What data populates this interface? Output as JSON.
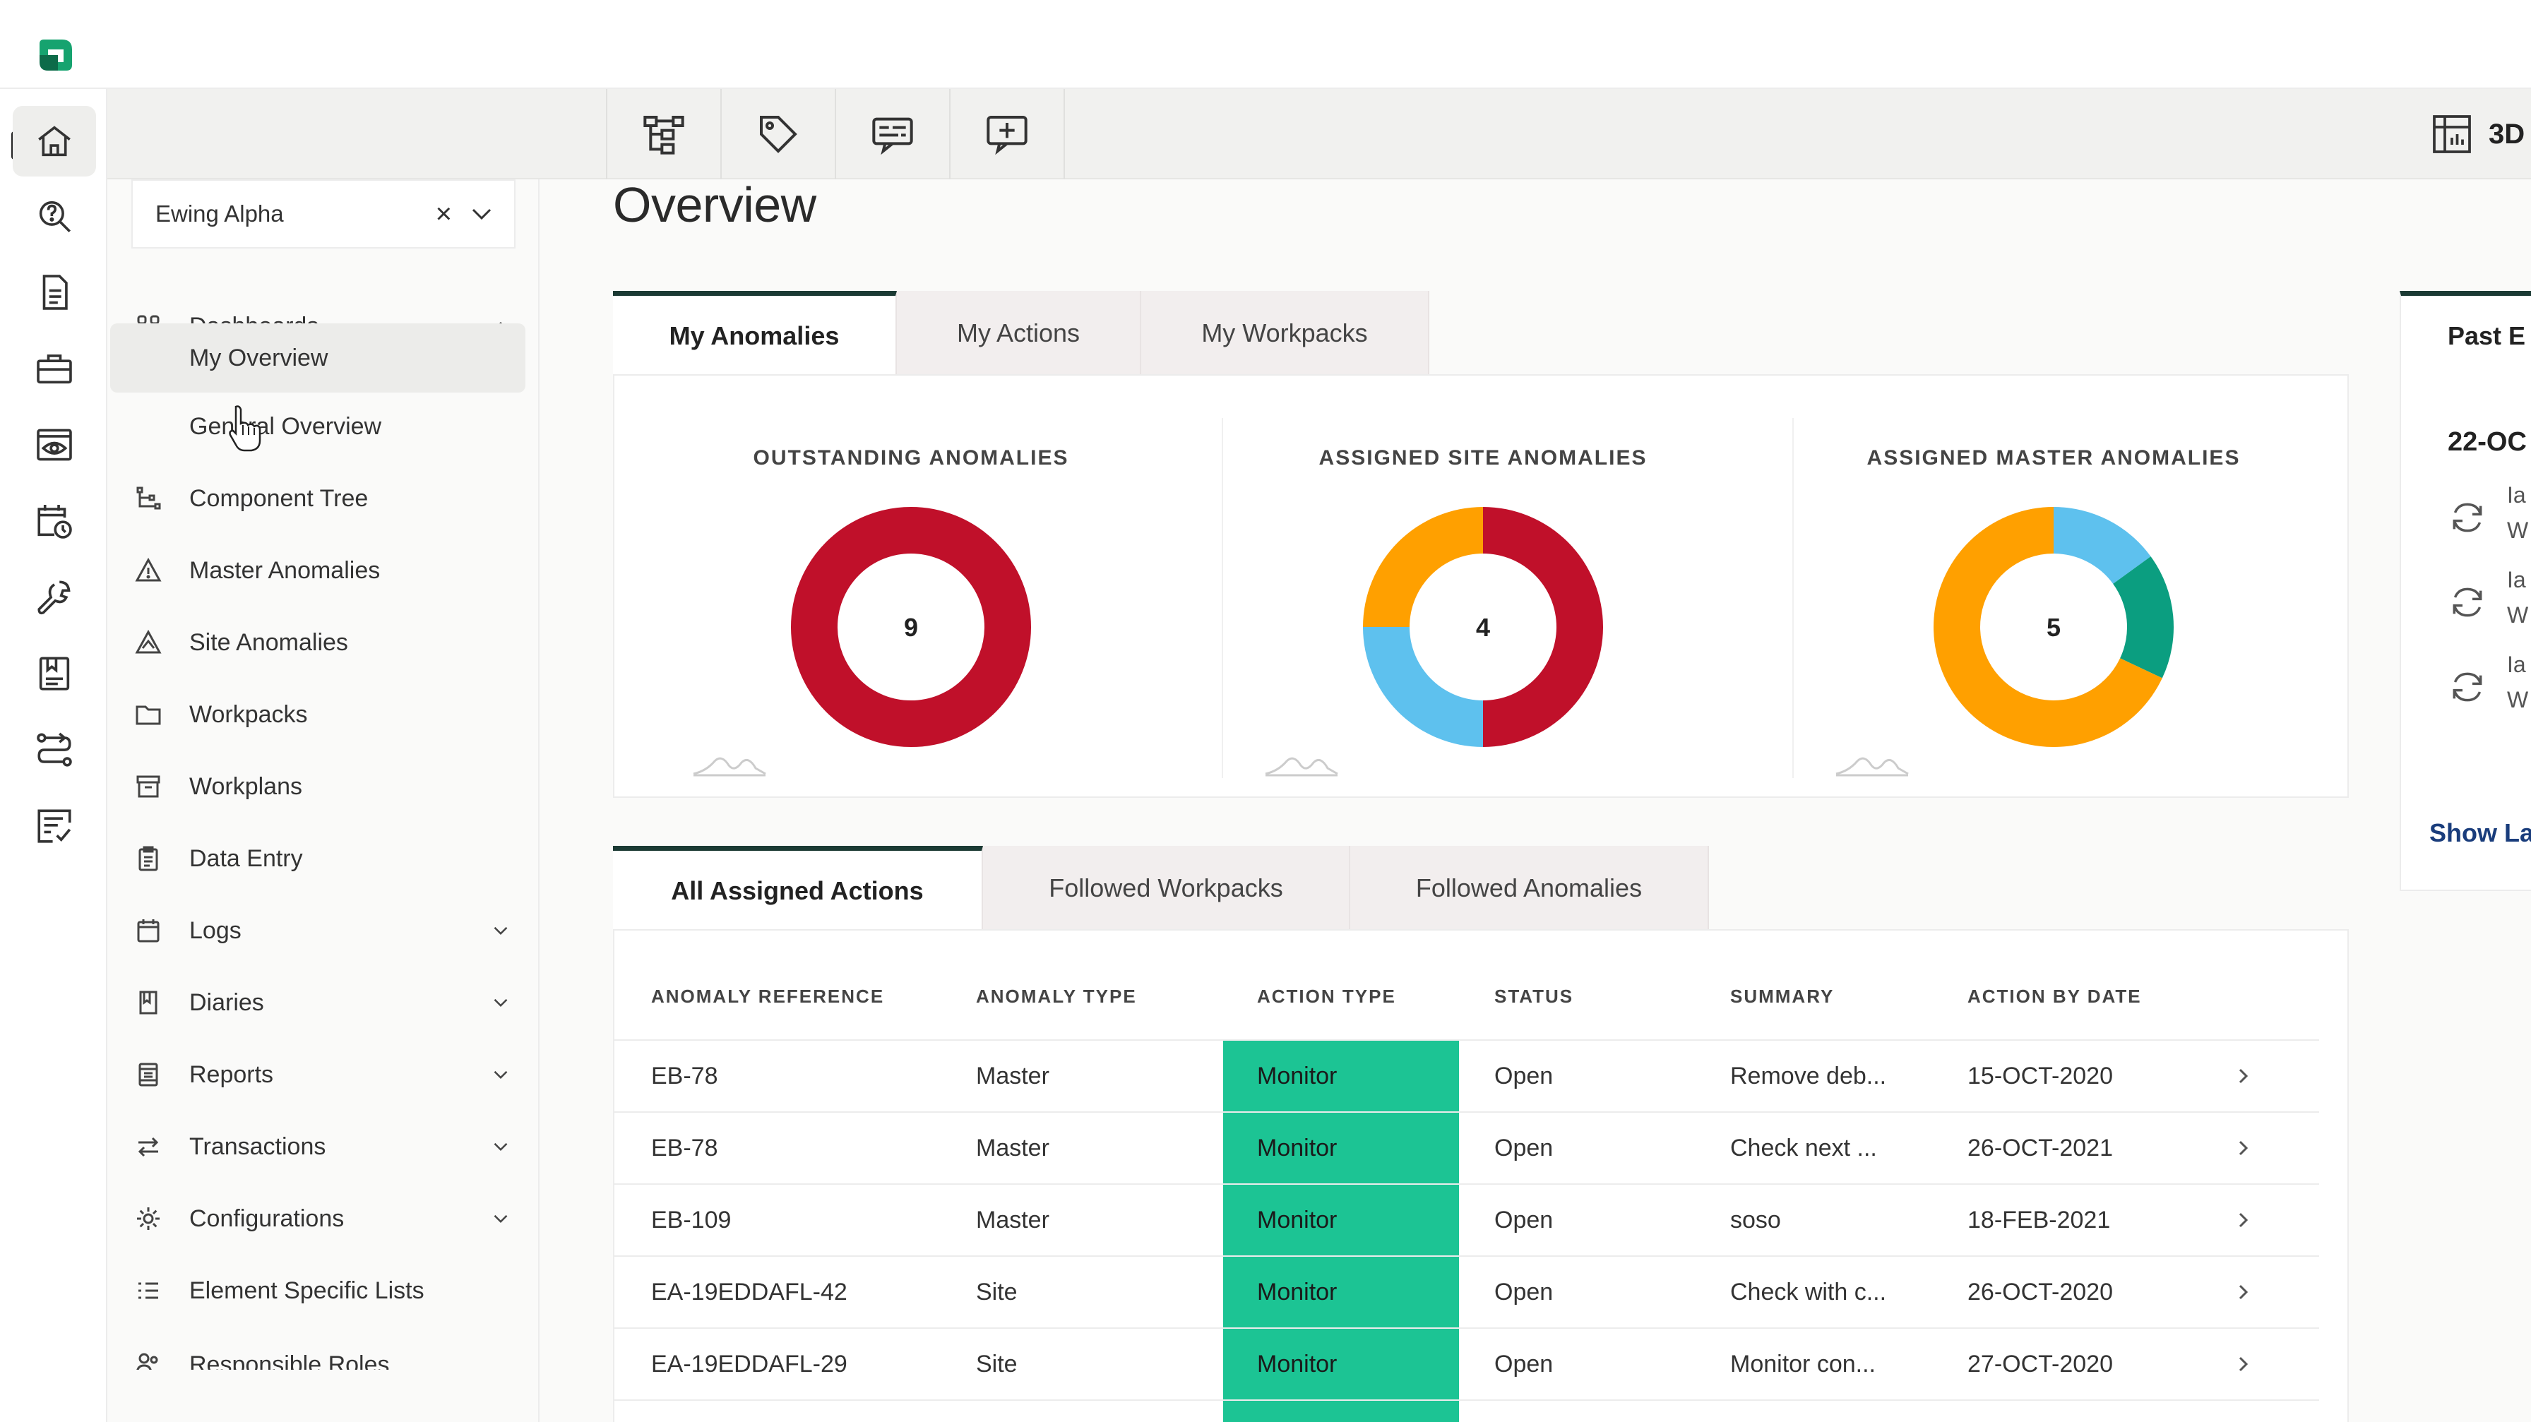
{
  "window": {
    "title": "Overview"
  },
  "sidebar_rail": {
    "items": [
      {
        "icon": "home-icon"
      },
      {
        "icon": "search-help-icon"
      },
      {
        "icon": "document-icon"
      },
      {
        "icon": "briefcase-icon"
      },
      {
        "icon": "eye-monitor-icon"
      },
      {
        "icon": "calendar-clock-icon"
      },
      {
        "icon": "wrench-icon"
      },
      {
        "icon": "form-icon"
      },
      {
        "icon": "route-icon"
      },
      {
        "icon": "checklist-icon"
      }
    ]
  },
  "toolbar": {
    "buttons": [
      {
        "icon": "hierarchy-icon"
      },
      {
        "icon": "tag-icon"
      },
      {
        "icon": "caption-icon"
      },
      {
        "icon": "add-comment-icon"
      }
    ],
    "view_3d_label": "3D"
  },
  "site_selector": {
    "value": "Ewing Alpha",
    "clear": "×"
  },
  "nav": {
    "dashboards": "Dashboards",
    "my_overview": "My Overview",
    "general_overview": "General Overview",
    "component_tree": "Component Tree",
    "master_anomalies": "Master Anomalies",
    "site_anomalies": "Site Anomalies",
    "workpacks": "Workpacks",
    "workplans": "Workplans",
    "data_entry": "Data Entry",
    "logs": "Logs",
    "diaries": "Diaries",
    "reports": "Reports",
    "transactions": "Transactions",
    "configurations": "Configurations",
    "element_specific_lists": "Element Specific Lists",
    "responsible_roles": "Responsible Roles"
  },
  "page": {
    "title": "Overview"
  },
  "top_tabs": [
    "My Anomalies",
    "My Actions",
    "My Workpacks"
  ],
  "donuts": [
    {
      "title": "OUTSTANDING ANOMALIES",
      "total": "9",
      "segments": [
        {
          "value": 9,
          "color": "#c0102a"
        }
      ]
    },
    {
      "title": "ASSIGNED SITE ANOMALIES",
      "total": "4",
      "segments": [
        {
          "value": 2,
          "color": "#c0102a"
        },
        {
          "value": 1,
          "color": "#5ec1ee"
        },
        {
          "value": 1,
          "color": "#ffa000"
        }
      ]
    },
    {
      "title": "ASSIGNED MASTER ANOMALIES",
      "total": "5",
      "segments": [
        {
          "value": 0.75,
          "color": "#5ec1ee"
        },
        {
          "value": 0.85,
          "color": "#0b9e80"
        },
        {
          "value": 3.4,
          "color": "#ffa000"
        }
      ]
    }
  ],
  "bottom_tabs": [
    "All Assigned Actions",
    "Followed Workpacks",
    "Followed Anomalies"
  ],
  "table": {
    "headers": [
      "ANOMALY REFERENCE",
      "ANOMALY TYPE",
      "ACTION TYPE",
      "STATUS",
      "SUMMARY",
      "ACTION BY DATE"
    ],
    "rows": [
      [
        "EB-78",
        "Master",
        "Monitor",
        "Open",
        "Remove deb...",
        "15-OCT-2020"
      ],
      [
        "EB-78",
        "Master",
        "Monitor",
        "Open",
        "Check next ...",
        "26-OCT-2021"
      ],
      [
        "EB-109",
        "Master",
        "Monitor",
        "Open",
        "soso",
        "18-FEB-2021"
      ],
      [
        "EA-19EDDAFL-42",
        "Site",
        "Monitor",
        "Open",
        "Check with c...",
        "26-OCT-2020"
      ],
      [
        "EA-19EDDAFL-29",
        "Site",
        "Monitor",
        "Open",
        "Monitor con...",
        "27-OCT-2020"
      ]
    ],
    "action_color": "#1cc494"
  },
  "past_panel": {
    "title": "Past E",
    "date": "22-OC",
    "entries": [
      {
        "l1": "Ia",
        "l2": "W"
      },
      {
        "l1": "Ia",
        "l2": "W"
      },
      {
        "l1": "Ia",
        "l2": "W"
      }
    ],
    "show_later": "Show La"
  },
  "colors": {
    "accent": "#1b3a34",
    "brand": "#16a36f",
    "red": "#c0102a",
    "orange": "#ffa000",
    "blue": "#5ec1ee",
    "teal": "#0b9e80"
  }
}
